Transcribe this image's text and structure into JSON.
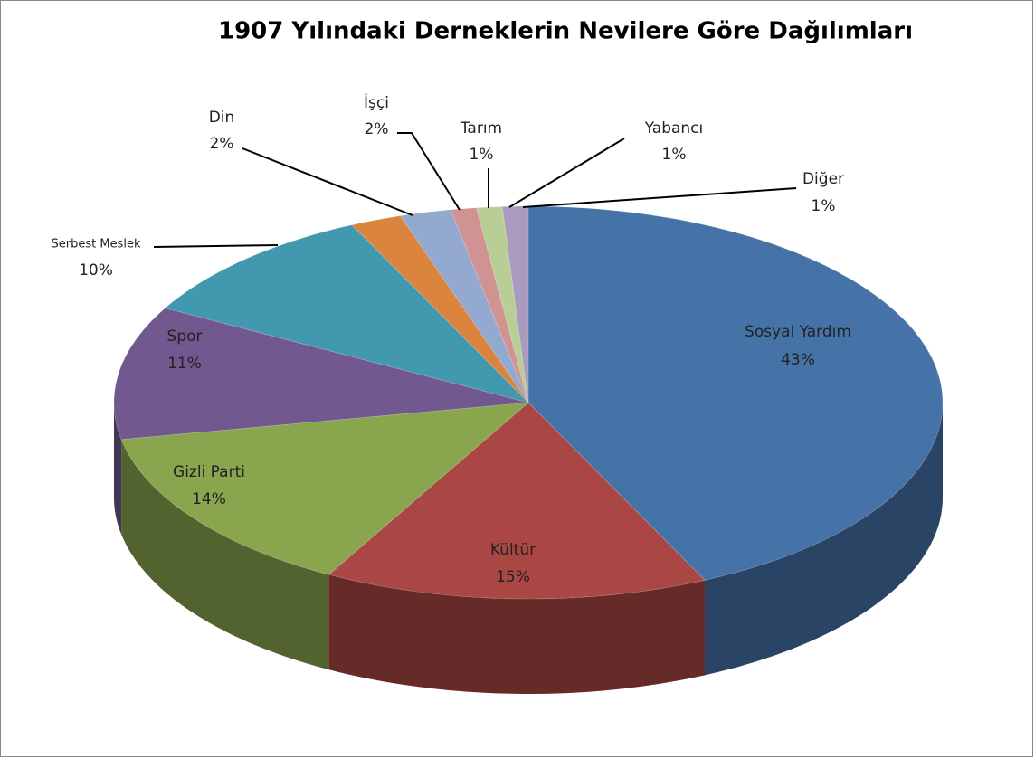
{
  "chart_data": {
    "type": "pie3d",
    "title": "1907 Yılındaki Derneklerin Nevilere Göre Dağılımları",
    "categories": [
      "Sosyal Yardım",
      "Kültür",
      "Gizli Parti",
      "Spor",
      "Serbest Meslek",
      "Din",
      "İşçi",
      "Tarım",
      "Yabancı",
      "Diğer"
    ],
    "values": [
      43,
      15,
      14,
      11,
      10,
      2,
      2,
      1,
      1,
      1
    ],
    "value_labels": [
      "43%",
      "15%",
      "14%",
      "11%",
      "10%",
      "2%",
      "2%",
      "1%",
      "1%",
      "1%"
    ],
    "colors": [
      "#4572a7",
      "#aa4643",
      "#89a54e",
      "#71588f",
      "#4198af",
      "#db843d",
      "#93a9cf",
      "#d19392",
      "#b9cd96",
      "#a99bbd"
    ]
  }
}
